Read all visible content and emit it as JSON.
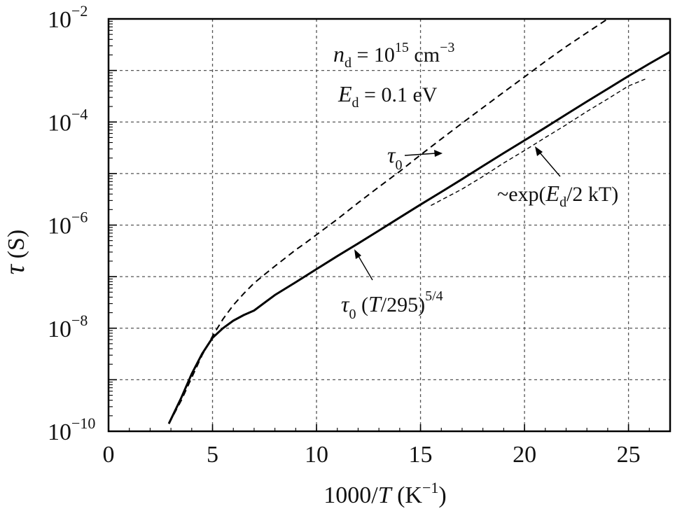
{
  "chart_data": {
    "type": "line",
    "xlabel": {
      "prefix": "1000/",
      "var": "T",
      "unit_open": " (K",
      "unit_sup": "−1",
      "unit_close": ")"
    },
    "ylabel": {
      "var": "τ",
      "unit": " (S)"
    },
    "xlim": [
      0,
      27
    ],
    "ylim": [
      1e-10,
      0.01
    ],
    "yscale": "log",
    "grid": true,
    "xticks": [
      {
        "value": 0,
        "label": "0"
      },
      {
        "value": 5,
        "label": "5"
      },
      {
        "value": 10,
        "label": "10"
      },
      {
        "value": 15,
        "label": "15"
      },
      {
        "value": 20,
        "label": "20"
      },
      {
        "value": 25,
        "label": "25"
      }
    ],
    "yticks": [
      {
        "exp": -2,
        "base": "10",
        "sup": "−2"
      },
      {
        "exp": -4,
        "base": "10",
        "sup": "−4"
      },
      {
        "exp": -6,
        "base": "10",
        "sup": "−6"
      },
      {
        "exp": -8,
        "base": "10",
        "sup": "−8"
      },
      {
        "exp": -10,
        "base": "10",
        "sup": "−10"
      }
    ],
    "params": {
      "nd": {
        "sym": "n",
        "sub": "d",
        "eq": " = 10",
        "sup": "15",
        "unit": " cm",
        "unit_sup": "−3"
      },
      "Ed": {
        "sym": "E",
        "sub": "d",
        "eq": " = 0.1 eV"
      }
    },
    "series": [
      {
        "name_parts": {
          "sym": "τ",
          "sub": "0"
        },
        "style": "dashed",
        "x": [
          2.9,
          3.5,
          4.0,
          4.5,
          5.0,
          5.5,
          6.0,
          6.5,
          7.0,
          7.5,
          8.0,
          8.5,
          9.0,
          9.5,
          10.0,
          11.0,
          12.0,
          13.0,
          14.0,
          15.0,
          16.0,
          17.0,
          18.0,
          19.0,
          20.0,
          21.0,
          22.0,
          23.0,
          24.0,
          25.0
        ],
        "y": [
          1.4e-10,
          4e-10,
          1.1e-09,
          3e-09,
          7e-09,
          1.5e-08,
          2.8e-08,
          4.7e-08,
          7.5e-08,
          1.1e-07,
          1.6e-07,
          2.3e-07,
          3.3e-07,
          4.6e-07,
          6.5e-07,
          1.3e-06,
          2.7e-06,
          5.5e-06,
          1.1e-05,
          2.3e-05,
          4.7e-05,
          9.5e-05,
          0.00019,
          0.00038,
          0.00075,
          0.0015,
          0.0029,
          0.0054,
          0.01,
          0.018
        ]
      },
      {
        "name_parts": {
          "sym": "τ",
          "sub": "0",
          "rest": " (",
          "var": "T",
          "tail": "/295)",
          "sup": "5/4"
        },
        "style": "solid",
        "x": [
          2.9,
          3.5,
          4.0,
          4.5,
          5.0,
          5.5,
          6.0,
          6.5,
          7.0,
          8.0,
          9.0,
          10.0,
          11.0,
          12.0,
          13.0,
          14.0,
          15.0,
          16.0,
          17.0,
          18.0,
          19.0,
          20.0,
          21.0,
          22.0,
          23.0,
          24.0,
          25.0,
          26.0,
          27.0
        ],
        "y": [
          1.4e-10,
          4.5e-10,
          1.3e-09,
          3.2e-09,
          6.5e-09,
          1e-08,
          1.4e-08,
          1.8e-08,
          2.2e-08,
          4.4e-08,
          7.8e-08,
          1.4e-07,
          2.5e-07,
          4.4e-07,
          7.8e-07,
          1.4e-06,
          2.5e-06,
          4.4e-06,
          7.8e-06,
          1.4e-05,
          2.5e-05,
          4.4e-05,
          7.8e-05,
          0.00014,
          0.00025,
          0.00044,
          0.00078,
          0.00135,
          0.0023
        ]
      },
      {
        "name_parts": {
          "pre": "~exp(",
          "sym": "E",
          "sub": "d",
          "tail": "/2 kT)"
        },
        "style": "dashed-thin",
        "x": [
          15.5,
          17,
          18,
          19,
          20,
          21,
          22,
          23,
          24,
          25,
          25.8
        ],
        "y": [
          2.4e-06,
          5e-06,
          8.8e-06,
          1.6e-05,
          2.8e-05,
          5e-05,
          8.8e-05,
          0.00016,
          0.00028,
          0.0005,
          0.00068
        ]
      }
    ]
  }
}
